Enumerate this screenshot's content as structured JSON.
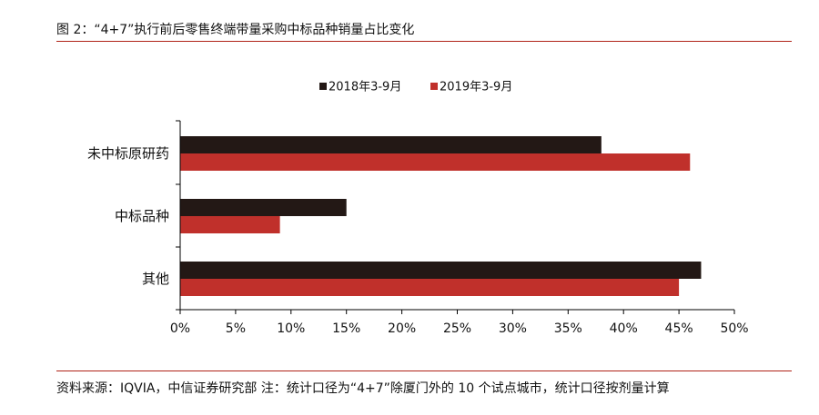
{
  "header": {
    "title": "图 2：“4+7”执行前后零售终端带量采购中标品种销量占比变化"
  },
  "footer": {
    "source": "资料来源：IQVIA，中信证券研究部   注：统计口径为“4+7”除厦门外的 10 个试点城市，统计口径按剂量计算"
  },
  "colors": {
    "rule": "#b02318",
    "series_2018": "#231815",
    "series_2019": "#c0302b"
  },
  "chart_data": {
    "type": "bar",
    "orientation": "horizontal",
    "categories": [
      "未中标原研药",
      "中标品种",
      "其他"
    ],
    "series": [
      {
        "name": "2018年3-9月",
        "values": [
          38,
          15,
          47
        ],
        "color": "#231815"
      },
      {
        "name": "2019年3-9月",
        "values": [
          46,
          9,
          45
        ],
        "color": "#c0302b"
      }
    ],
    "xlim": [
      0,
      50
    ],
    "xticks": [
      0,
      5,
      10,
      15,
      20,
      25,
      30,
      35,
      40,
      45,
      50
    ],
    "tick_format": "percent",
    "legend_position": "top-center",
    "grid": false
  }
}
